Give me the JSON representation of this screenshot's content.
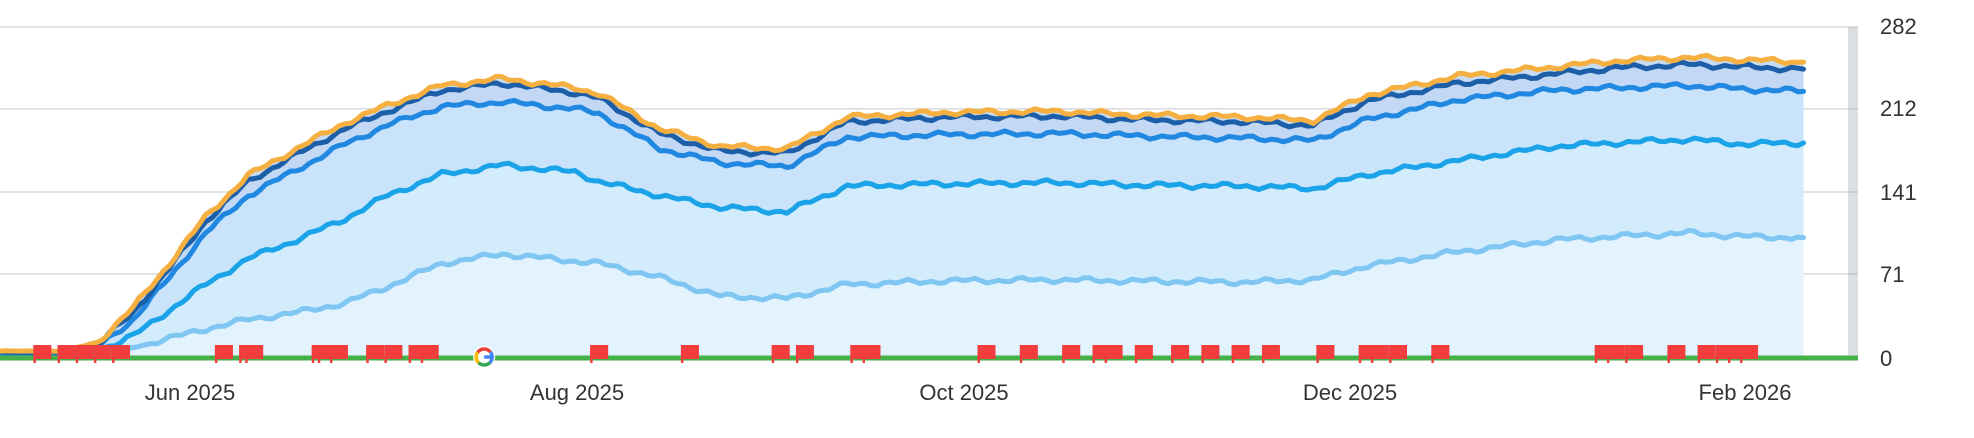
{
  "chart_data": {
    "type": "area",
    "x_type": "date",
    "x_range": [
      "2025-04-28",
      "2026-03-01"
    ],
    "ylim": [
      0,
      282
    ],
    "y_ticks": [
      "282",
      "212",
      "141",
      "71",
      "0"
    ],
    "y_tick_values": [
      282,
      212,
      141,
      71,
      0
    ],
    "x_ticks": [
      {
        "label": "Jun 2025",
        "date": "2025-06-01"
      },
      {
        "label": "Aug 2025",
        "date": "2025-08-01"
      },
      {
        "label": "Oct 2025",
        "date": "2025-10-01"
      },
      {
        "label": "Dec 2025",
        "date": "2025-12-01"
      },
      {
        "label": "Feb 2026",
        "date": "2026-02-01"
      }
    ],
    "grid": true,
    "y_axis_position": "right",
    "series": [
      {
        "color": "#f5b041",
        "points": [
          [
            "2025-04-28",
            5
          ],
          [
            "2025-05-08",
            5
          ],
          [
            "2025-05-14",
            12
          ],
          [
            "2025-05-20",
            42
          ],
          [
            "2025-05-26",
            80
          ],
          [
            "2025-06-01",
            120
          ],
          [
            "2025-06-08",
            155
          ],
          [
            "2025-06-16",
            178
          ],
          [
            "2025-06-24",
            200
          ],
          [
            "2025-07-01",
            215
          ],
          [
            "2025-07-10",
            232
          ],
          [
            "2025-07-20",
            238
          ],
          [
            "2025-08-01",
            230
          ],
          [
            "2025-08-05",
            225
          ],
          [
            "2025-08-15",
            195
          ],
          [
            "2025-08-25",
            180
          ],
          [
            "2025-09-05",
            178
          ],
          [
            "2025-09-15",
            205
          ],
          [
            "2025-10-01",
            209
          ],
          [
            "2025-10-20",
            210
          ],
          [
            "2025-11-01",
            207
          ],
          [
            "2025-11-20",
            205
          ],
          [
            "2025-12-01",
            202
          ],
          [
            "2025-12-10",
            224
          ],
          [
            "2025-12-25",
            240
          ],
          [
            "2026-01-10",
            248
          ],
          [
            "2026-01-20",
            253
          ],
          [
            "2026-02-01",
            256
          ],
          [
            "2026-02-10",
            254
          ],
          [
            "2026-02-20",
            252
          ]
        ]
      },
      {
        "color": "#1c5fa8",
        "points": [
          [
            "2025-04-28",
            4
          ],
          [
            "2025-05-08",
            4
          ],
          [
            "2025-05-14",
            10
          ],
          [
            "2025-05-20",
            38
          ],
          [
            "2025-05-26",
            76
          ],
          [
            "2025-06-01",
            116
          ],
          [
            "2025-06-08",
            150
          ],
          [
            "2025-06-16",
            173
          ],
          [
            "2025-06-24",
            195
          ],
          [
            "2025-07-01",
            210
          ],
          [
            "2025-07-10",
            228
          ],
          [
            "2025-07-20",
            234
          ],
          [
            "2025-08-01",
            226
          ],
          [
            "2025-08-05",
            221
          ],
          [
            "2025-08-15",
            191
          ],
          [
            "2025-08-25",
            176
          ],
          [
            "2025-09-05",
            174
          ],
          [
            "2025-09-15",
            201
          ],
          [
            "2025-10-01",
            205
          ],
          [
            "2025-10-20",
            206
          ],
          [
            "2025-11-01",
            203
          ],
          [
            "2025-11-20",
            201
          ],
          [
            "2025-12-01",
            198
          ],
          [
            "2025-12-10",
            219
          ],
          [
            "2025-12-25",
            234
          ],
          [
            "2026-01-10",
            242
          ],
          [
            "2026-01-20",
            247
          ],
          [
            "2026-02-01",
            250
          ],
          [
            "2026-02-10",
            248
          ],
          [
            "2026-02-20",
            246
          ]
        ]
      },
      {
        "color": "#2088e0",
        "points": [
          [
            "2025-04-28",
            3
          ],
          [
            "2025-05-08",
            3
          ],
          [
            "2025-05-14",
            8
          ],
          [
            "2025-05-20",
            32
          ],
          [
            "2025-05-26",
            68
          ],
          [
            "2025-06-01",
            106
          ],
          [
            "2025-06-08",
            138
          ],
          [
            "2025-06-16",
            160
          ],
          [
            "2025-06-24",
            182
          ],
          [
            "2025-07-01",
            198
          ],
          [
            "2025-07-10",
            214
          ],
          [
            "2025-07-20",
            218
          ],
          [
            "2025-08-01",
            212
          ],
          [
            "2025-08-05",
            208
          ],
          [
            "2025-08-15",
            178
          ],
          [
            "2025-08-25",
            166
          ],
          [
            "2025-09-05",
            163
          ],
          [
            "2025-09-15",
            188
          ],
          [
            "2025-10-01",
            190
          ],
          [
            "2025-10-20",
            191
          ],
          [
            "2025-11-01",
            189
          ],
          [
            "2025-11-20",
            187
          ],
          [
            "2025-12-01",
            185
          ],
          [
            "2025-12-10",
            203
          ],
          [
            "2025-12-25",
            220
          ],
          [
            "2026-01-10",
            228
          ],
          [
            "2026-01-20",
            230
          ],
          [
            "2026-02-01",
            232
          ],
          [
            "2026-02-10",
            229
          ],
          [
            "2026-02-20",
            227
          ]
        ]
      },
      {
        "color": "#1aa3e8",
        "points": [
          [
            "2025-04-28",
            2
          ],
          [
            "2025-05-08",
            2
          ],
          [
            "2025-05-14",
            5
          ],
          [
            "2025-05-20",
            18
          ],
          [
            "2025-05-26",
            40
          ],
          [
            "2025-06-01",
            62
          ],
          [
            "2025-06-08",
            84
          ],
          [
            "2025-06-16",
            100
          ],
          [
            "2025-06-24",
            118
          ],
          [
            "2025-07-01",
            138
          ],
          [
            "2025-07-10",
            156
          ],
          [
            "2025-07-20",
            164
          ],
          [
            "2025-08-01",
            158
          ],
          [
            "2025-08-05",
            150
          ],
          [
            "2025-08-15",
            138
          ],
          [
            "2025-08-25",
            128
          ],
          [
            "2025-09-05",
            124
          ],
          [
            "2025-09-15",
            146
          ],
          [
            "2025-10-01",
            148
          ],
          [
            "2025-10-20",
            149
          ],
          [
            "2025-11-01",
            147
          ],
          [
            "2025-11-20",
            146
          ],
          [
            "2025-12-01",
            144
          ],
          [
            "2025-12-10",
            156
          ],
          [
            "2025-12-25",
            168
          ],
          [
            "2026-01-10",
            180
          ],
          [
            "2026-01-20",
            183
          ],
          [
            "2026-02-01",
            186
          ],
          [
            "2026-02-10",
            182
          ],
          [
            "2026-02-20",
            183
          ]
        ]
      },
      {
        "color": "#7fc6f2",
        "points": [
          [
            "2025-04-28",
            1
          ],
          [
            "2025-05-08",
            1
          ],
          [
            "2025-05-14",
            3
          ],
          [
            "2025-05-20",
            8
          ],
          [
            "2025-05-26",
            16
          ],
          [
            "2025-06-01",
            24
          ],
          [
            "2025-06-08",
            32
          ],
          [
            "2025-06-16",
            38
          ],
          [
            "2025-06-24",
            46
          ],
          [
            "2025-07-01",
            60
          ],
          [
            "2025-07-10",
            80
          ],
          [
            "2025-07-20",
            88
          ],
          [
            "2025-08-01",
            82
          ],
          [
            "2025-08-05",
            80
          ],
          [
            "2025-08-15",
            68
          ],
          [
            "2025-08-25",
            52
          ],
          [
            "2025-09-05",
            50
          ],
          [
            "2025-09-15",
            62
          ],
          [
            "2025-10-01",
            65
          ],
          [
            "2025-10-20",
            66
          ],
          [
            "2025-11-01",
            65
          ],
          [
            "2025-11-20",
            64
          ],
          [
            "2025-12-01",
            66
          ],
          [
            "2025-12-10",
            78
          ],
          [
            "2025-12-25",
            90
          ],
          [
            "2026-01-10",
            100
          ],
          [
            "2026-01-20",
            103
          ],
          [
            "2026-02-01",
            106
          ],
          [
            "2026-02-10",
            103
          ],
          [
            "2026-02-20",
            102
          ]
        ]
      }
    ],
    "baseline_color": "#45b249",
    "event_flag_color": "#f13d3d",
    "event_flags": [
      "2025-05-05",
      "2025-05-09",
      "2025-05-12",
      "2025-05-15",
      "2025-05-18",
      "2025-06-04",
      "2025-06-08",
      "2025-06-09",
      "2025-06-20",
      "2025-06-21",
      "2025-06-23",
      "2025-06-29",
      "2025-07-02",
      "2025-07-06",
      "2025-07-08",
      "2025-08-05",
      "2025-08-20",
      "2025-09-04",
      "2025-09-08",
      "2025-09-17",
      "2025-09-19",
      "2025-10-08",
      "2025-10-15",
      "2025-10-22",
      "2025-10-27",
      "2025-10-29",
      "2025-11-03",
      "2025-11-09",
      "2025-11-14",
      "2025-11-19",
      "2025-11-24",
      "2025-12-03",
      "2025-12-10",
      "2025-12-12",
      "2025-12-15",
      "2025-12-22",
      "2026-01-18",
      "2026-01-20",
      "2026-01-23",
      "2026-01-30",
      "2026-02-04",
      "2026-02-07",
      "2026-02-09",
      "2026-02-11"
    ],
    "google_update_markers": [
      "2025-07-17"
    ]
  }
}
